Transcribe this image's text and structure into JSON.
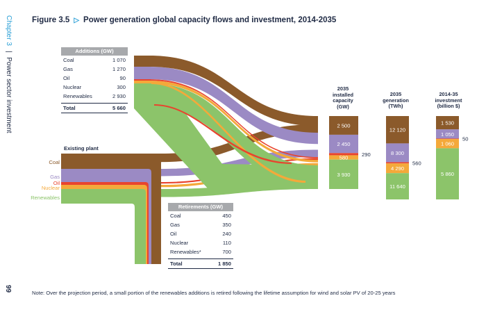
{
  "sidebar": {
    "chapter": "Chapter 3",
    "separator": "|",
    "section": "Power sector investment"
  },
  "page_number": "99",
  "figure": {
    "label": "Figure 3.5",
    "title": "Power generation global capacity flows and investment, 2014-2035"
  },
  "note": "Note: Over the projection period, a small portion of the renewables additions is retired following the lifetime assumption for wind and solar PV of 20-25 years",
  "colors": {
    "coal": "#8b5a2b",
    "gas": "#9b8ac4",
    "oil": "#e8442e",
    "nuclear": "#f4a93a",
    "renewables": "#8cc46a",
    "table_header": "#a7a9ac",
    "accent": "#2a9fd6"
  },
  "existing_label": "Existing plant",
  "chart_data": {
    "type": "sankey",
    "title": "Power generation global capacity flows and investment, 2014-2035",
    "additions": {
      "header": "Additions (GW)",
      "rows": [
        {
          "label": "Coal",
          "value": "1 070"
        },
        {
          "label": "Gas",
          "value": "1 270"
        },
        {
          "label": "Oil",
          "value": "90"
        },
        {
          "label": "Nuclear",
          "value": "300"
        },
        {
          "label": "Renewables",
          "value": "2 930"
        }
      ],
      "total": {
        "label": "Total",
        "value": "5 660"
      }
    },
    "retirements": {
      "header": "Retirements (GW)",
      "rows": [
        {
          "label": "Coal",
          "value": "450"
        },
        {
          "label": "Gas",
          "value": "350"
        },
        {
          "label": "Oil",
          "value": "240"
        },
        {
          "label": "Nuclear",
          "value": "110"
        },
        {
          "label": "Renewables*",
          "value": "700"
        }
      ],
      "total": {
        "label": "Total",
        "value": "1 850"
      }
    },
    "existing_plant": [
      "Coal",
      "Gas",
      "Oil",
      "Nuclear",
      "Renewables"
    ],
    "columns": [
      {
        "header": [
          "2035",
          "installed",
          "capacity",
          "(GW)"
        ],
        "segments": [
          {
            "fuel": "coal",
            "label": "2 500",
            "value": 2500
          },
          {
            "fuel": "gas",
            "label": "2 450",
            "value": 2450
          },
          {
            "fuel": "oil",
            "label": "290",
            "value": 290
          },
          {
            "fuel": "nuclear",
            "label": "580",
            "value": 580
          },
          {
            "fuel": "renewables",
            "label": "3 930",
            "value": 3930
          }
        ]
      },
      {
        "header": [
          "2035",
          "generation",
          "(TWh)"
        ],
        "segments": [
          {
            "fuel": "coal",
            "label": "12 120",
            "value": 12120
          },
          {
            "fuel": "gas",
            "label": "8 300",
            "value": 8300
          },
          {
            "fuel": "oil",
            "label": "560",
            "value": 560
          },
          {
            "fuel": "nuclear",
            "label": "4 290",
            "value": 4290
          },
          {
            "fuel": "renewables",
            "label": "11 640",
            "value": 11640
          }
        ]
      },
      {
        "header": [
          "2014-35",
          "investment",
          "(billion $)"
        ],
        "segments": [
          {
            "fuel": "coal",
            "label": "1 530",
            "value": 1530
          },
          {
            "fuel": "gas",
            "label": "1 050",
            "value": 1050
          },
          {
            "fuel": "oil",
            "label": "50",
            "value": 50
          },
          {
            "fuel": "nuclear",
            "label": "1 060",
            "value": 1060
          },
          {
            "fuel": "renewables",
            "label": "5 860",
            "value": 5860
          }
        ]
      }
    ]
  }
}
